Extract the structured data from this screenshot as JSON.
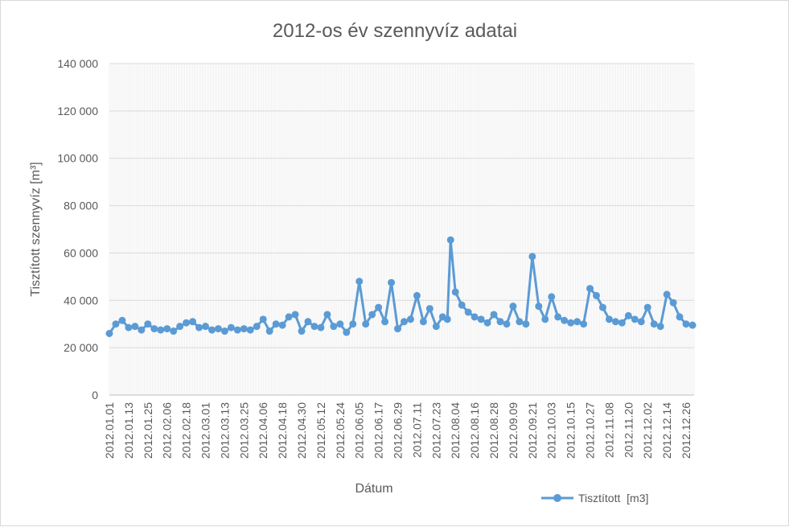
{
  "chart_data": {
    "type": "line",
    "title": "2012-os év szennyvíz adatai",
    "xlabel": "Dátum",
    "ylabel": "Tisztított szennyvíz [m³]",
    "ylim": [
      0,
      140000
    ],
    "y_ticks": [
      "0",
      "20 000",
      "40 000",
      "60 000",
      "80 000",
      "100 000",
      "120 000",
      "140 000"
    ],
    "y_tick_values": [
      0,
      20000,
      40000,
      60000,
      80000,
      100000,
      120000,
      140000
    ],
    "x_tick_labels": [
      "2012.01.01",
      "2012.01.13",
      "2012.01.25",
      "2012.02.06",
      "2012.02.18",
      "2012.03.01",
      "2012.03.13",
      "2012.03.25",
      "2012.04.06",
      "2012.04.18",
      "2012.04.30",
      "2012.05.12",
      "2012.05.24",
      "2012.06.05",
      "2012.06.17",
      "2012.06.29",
      "2012.07.11",
      "2012.07.23",
      "2012.08.04",
      "2012.08.16",
      "2012.08.28",
      "2012.09.09",
      "2012.09.21",
      "2012.10.03",
      "2012.10.15",
      "2012.10.27",
      "2012.11.08",
      "2012.11.20",
      "2012.12.02",
      "2012.12.14",
      "2012.12.26"
    ],
    "x_start": "2012.01.01",
    "x_end": "2012.12.31",
    "grid": true,
    "legend_position": "bottom-right",
    "series": [
      {
        "name": "Tisztított  [m3]",
        "color": "#5b9bd5",
        "x": [
          "2012.01.01",
          "2012.01.05",
          "2012.01.09",
          "2012.01.13",
          "2012.01.17",
          "2012.01.21",
          "2012.01.25",
          "2012.01.29",
          "2012.02.02",
          "2012.02.06",
          "2012.02.10",
          "2012.02.14",
          "2012.02.18",
          "2012.02.22",
          "2012.02.26",
          "2012.03.01",
          "2012.03.05",
          "2012.03.09",
          "2012.03.13",
          "2012.03.17",
          "2012.03.21",
          "2012.03.25",
          "2012.03.29",
          "2012.04.02",
          "2012.04.06",
          "2012.04.10",
          "2012.04.14",
          "2012.04.18",
          "2012.04.22",
          "2012.04.26",
          "2012.04.30",
          "2012.05.04",
          "2012.05.08",
          "2012.05.12",
          "2012.05.16",
          "2012.05.20",
          "2012.05.24",
          "2012.05.28",
          "2012.06.01",
          "2012.06.05",
          "2012.06.09",
          "2012.06.13",
          "2012.06.17",
          "2012.06.21",
          "2012.06.25",
          "2012.06.29",
          "2012.07.03",
          "2012.07.07",
          "2012.07.11",
          "2012.07.15",
          "2012.07.19",
          "2012.07.23",
          "2012.07.27",
          "2012.07.30",
          "2012.08.01",
          "2012.08.04",
          "2012.08.08",
          "2012.08.12",
          "2012.08.16",
          "2012.08.20",
          "2012.08.24",
          "2012.08.28",
          "2012.09.01",
          "2012.09.05",
          "2012.09.09",
          "2012.09.13",
          "2012.09.17",
          "2012.09.21",
          "2012.09.25",
          "2012.09.29",
          "2012.10.03",
          "2012.10.07",
          "2012.10.11",
          "2012.10.15",
          "2012.10.19",
          "2012.10.23",
          "2012.10.27",
          "2012.10.31",
          "2012.11.04",
          "2012.11.08",
          "2012.11.12",
          "2012.11.16",
          "2012.11.20",
          "2012.11.24",
          "2012.11.28",
          "2012.12.02",
          "2012.12.06",
          "2012.12.10",
          "2012.12.14",
          "2012.12.18",
          "2012.12.22",
          "2012.12.26",
          "2012.12.30"
        ],
        "values": [
          26000,
          30000,
          31500,
          28500,
          29000,
          27500,
          30000,
          28000,
          27500,
          28000,
          27000,
          29000,
          30500,
          31000,
          28500,
          29000,
          27500,
          28000,
          27000,
          28500,
          27500,
          28000,
          27500,
          29000,
          32000,
          27000,
          30000,
          29500,
          33000,
          34000,
          27000,
          31000,
          29000,
          28500,
          34000,
          29000,
          30000,
          26500,
          30000,
          48000,
          30000,
          34000,
          37000,
          31000,
          47500,
          28000,
          31000,
          32000,
          42000,
          31000,
          36500,
          29000,
          33000,
          32000,
          65500,
          43500,
          38000,
          35000,
          33000,
          32000,
          30500,
          34000,
          31000,
          30000,
          37500,
          31000,
          30000,
          58500,
          37500,
          32000,
          41500,
          33000,
          31500,
          30500,
          31000,
          30000,
          45000,
          42000,
          37000,
          32000,
          31000,
          30500,
          33500,
          32000,
          31000,
          37000,
          30000,
          29000,
          42500,
          39000,
          33000,
          30000,
          29500
        ]
      }
    ]
  }
}
